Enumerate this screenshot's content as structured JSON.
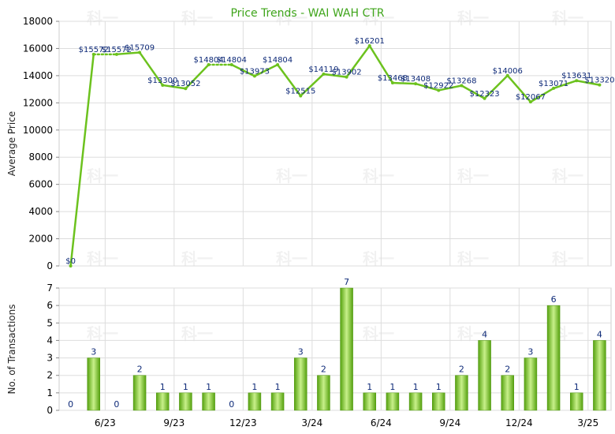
{
  "colors": {
    "line": "#6cc21e",
    "bar_light": "#c8f08a",
    "bar_dark": "#55a10f",
    "title": "#3fa51b",
    "grid": "#dddddd",
    "label": "#0e2a78"
  },
  "watermark": "科一",
  "chart_data": [
    {
      "type": "line",
      "title": "Price Trends - WAI WAH CTR",
      "ylabel": "Average Price",
      "ylim": [
        0,
        18000
      ],
      "yticks": [
        "0",
        "2000",
        "4000",
        "6000",
        "8000",
        "10000",
        "12000",
        "14000",
        "16000",
        "18000"
      ],
      "xticks": [
        "6/23",
        "9/23",
        "12/23",
        "3/24",
        "6/24",
        "9/24",
        "12/24",
        "3/25"
      ],
      "values": [
        0,
        15572,
        15572,
        15709,
        13300,
        13052,
        14804,
        14804,
        13973,
        14804,
        12515,
        14119,
        13902,
        16201,
        13468,
        13408,
        12922,
        13268,
        12323,
        14006,
        12067,
        13071,
        13631,
        13320
      ],
      "labels": [
        "$0",
        "$15572",
        "$15572",
        "$15709",
        "$13300",
        "$13052",
        "$14804",
        "$14804",
        "$13973",
        "$14804",
        "$12515",
        "$14119",
        "$13902",
        "$16201",
        "$13468",
        "$13408",
        "$12922",
        "$13268",
        "$12323",
        "$14006",
        "$12067",
        "$13071",
        "$13631",
        "$13320"
      ],
      "grid": true
    },
    {
      "type": "bar",
      "ylabel": "No. of Transactions",
      "ylim": [
        0,
        7
      ],
      "yticks": [
        "0",
        "1",
        "2",
        "3",
        "4",
        "5",
        "6",
        "7"
      ],
      "xticks": [
        "6/23",
        "9/23",
        "12/23",
        "3/24",
        "6/24",
        "9/24",
        "12/24",
        "3/25"
      ],
      "values": [
        0,
        3,
        0,
        2,
        1,
        1,
        1,
        0,
        1,
        1,
        3,
        2,
        7,
        1,
        1,
        1,
        1,
        2,
        4,
        2,
        3,
        6,
        1,
        4
      ],
      "grid": true
    }
  ]
}
